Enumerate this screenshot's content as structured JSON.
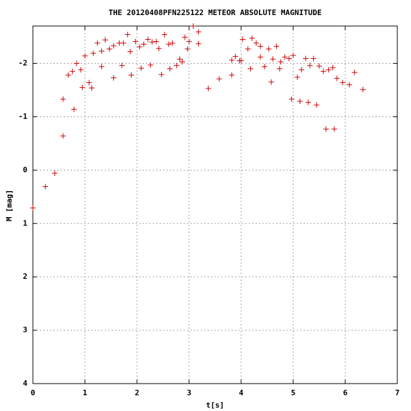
{
  "chart_data": {
    "type": "scatter",
    "title": "THE 20120408PFN225122 METEOR ABSOLUTE MAGNITUDE",
    "x_label": "t[s]",
    "y_label": "M [mag]",
    "xlim": [
      0,
      7
    ],
    "xticks": [
      0,
      1,
      2,
      3,
      4,
      5,
      6,
      7
    ],
    "ylim": [
      -2.7,
      4
    ],
    "yticks": [
      -2,
      -1,
      0,
      1,
      2,
      3,
      4
    ],
    "y_inverted": true,
    "grid": true,
    "series": [
      {
        "color": "#cc0000",
        "x": [
          0,
          0.24,
          0.42,
          0.58,
          0.58,
          0.68,
          0.76,
          0.79,
          0.84,
          0.92,
          0.95,
          1.0,
          1.08,
          1.13,
          1.16,
          1.24,
          1.32,
          1.32,
          1.39,
          1.47,
          1.55,
          1.55,
          1.66,
          1.71,
          1.74,
          1.82,
          1.87,
          1.89,
          1.97,
          2.05,
          2.08,
          2.13,
          2.21,
          2.26,
          2.29,
          2.37,
          2.42,
          2.47,
          2.53,
          2.61,
          2.63,
          2.68,
          2.76,
          2.82,
          2.87,
          2.92,
          2.97,
          3.0,
          3.08,
          3.18,
          3.18,
          3.37,
          3.58,
          3.82,
          3.82,
          3.89,
          3.97,
          4.0,
          4.03,
          4.13,
          4.18,
          4.21,
          4.29,
          4.37,
          4.37,
          4.45,
          4.53,
          4.58,
          4.61,
          4.68,
          4.74,
          4.76,
          4.84,
          4.92,
          4.97,
          5.0,
          5.08,
          5.13,
          5.16,
          5.24,
          5.29,
          5.32,
          5.39,
          5.45,
          5.5,
          5.58,
          5.63,
          5.68,
          5.76,
          5.79,
          5.84,
          5.95,
          6.08,
          6.18,
          6.34
        ],
        "values": [
          0.71,
          0.31,
          0.06,
          -1.33,
          -0.64,
          -1.78,
          -1.85,
          -1.14,
          -2.0,
          -1.88,
          -1.55,
          -2.14,
          -1.64,
          -1.54,
          -2.19,
          -2.38,
          -1.94,
          -2.23,
          -2.44,
          -2.27,
          -1.73,
          -2.33,
          -2.38,
          -1.96,
          -2.38,
          -2.54,
          -2.22,
          -1.78,
          -2.41,
          -2.31,
          -1.91,
          -2.36,
          -2.45,
          -1.97,
          -2.4,
          -2.41,
          -2.28,
          -1.79,
          -2.54,
          -2.36,
          -1.9,
          -2.38,
          -1.96,
          -2.08,
          -2.03,
          -2.49,
          -2.27,
          -2.41,
          -2.7,
          -2.59,
          -2.37,
          -1.53,
          -1.71,
          -1.78,
          -2.06,
          -2.13,
          -2.05,
          -2.05,
          -2.45,
          -2.27,
          -1.9,
          -2.47,
          -2.38,
          -2.12,
          -2.32,
          -1.94,
          -2.27,
          -1.65,
          -2.08,
          -2.32,
          -1.9,
          -2.03,
          -2.12,
          -2.09,
          -1.33,
          -2.15,
          -1.74,
          -1.29,
          -1.88,
          -2.09,
          -1.27,
          -1.96,
          -2.09,
          -1.22,
          -1.95,
          -1.85,
          -0.77,
          -1.88,
          -1.92,
          -0.77,
          -1.72,
          -1.64,
          -1.6,
          -1.83,
          -1.51
        ]
      }
    ]
  }
}
